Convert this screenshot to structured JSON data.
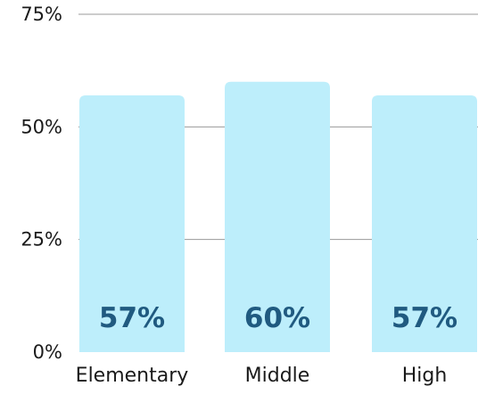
{
  "chart_data": {
    "type": "bar",
    "categories": [
      "Elementary",
      "Middle",
      "High"
    ],
    "values": [
      57,
      60,
      57
    ],
    "value_labels": [
      "57%",
      "60%",
      "57%"
    ],
    "title": "",
    "xlabel": "",
    "ylabel": "",
    "ylim": [
      0,
      75
    ],
    "yticks": [
      0,
      25,
      50,
      75
    ],
    "ytick_labels": [
      "0%",
      "25%",
      "50%",
      "75%"
    ],
    "grid": true,
    "bar_color": "#bdeefb",
    "label_color": "#205a80"
  }
}
